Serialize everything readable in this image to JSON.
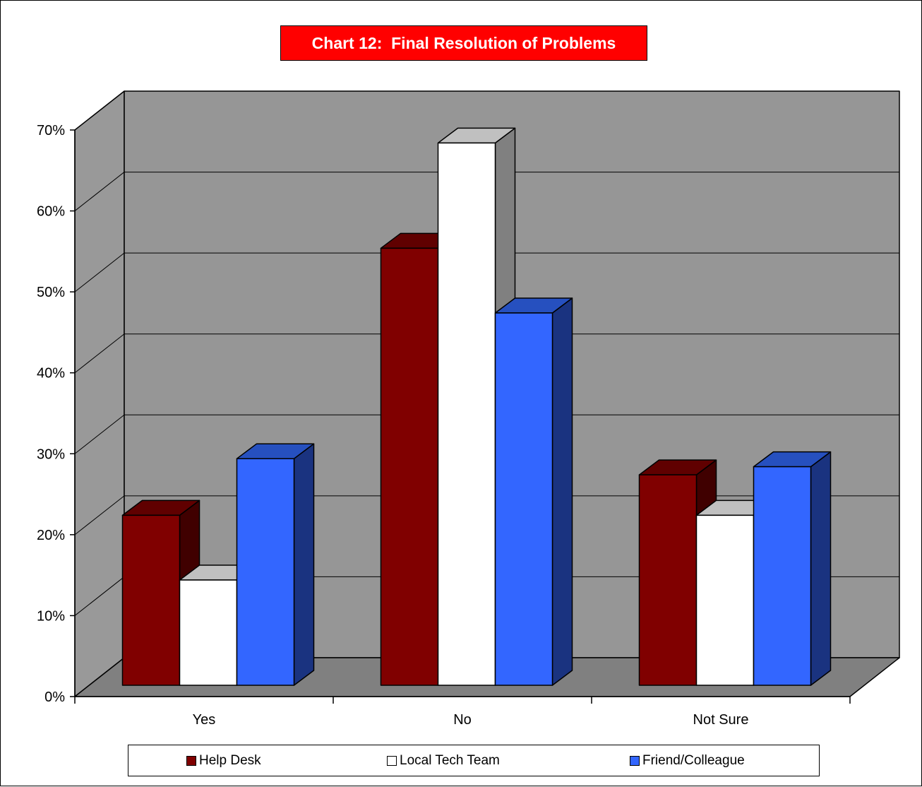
{
  "chart_data": {
    "type": "bar",
    "title": "Chart 12:  Final Resolution of Problems",
    "categories": [
      "Yes",
      "No",
      "Not Sure"
    ],
    "series": [
      {
        "name": "Help Desk",
        "values": [
          21,
          54,
          26
        ]
      },
      {
        "name": "Local Tech Team",
        "values": [
          13,
          67,
          21
        ]
      },
      {
        "name": "Friend/Colleague",
        "values": [
          28,
          46,
          27
        ]
      }
    ],
    "ylim": [
      0,
      70
    ],
    "yticks": [
      "0%",
      "10%",
      "20%",
      "30%",
      "40%",
      "50%",
      "60%",
      "70%"
    ],
    "xlabel": "",
    "ylabel": "",
    "grid": true,
    "legend_position": "bottom",
    "three_d": true,
    "colors": {
      "series": [
        "#800000",
        "#ffffff",
        "#3366ff"
      ],
      "series_side": [
        "#400000",
        "#808080",
        "#1a3380"
      ],
      "series_top": [
        "#600000",
        "#c0c0c0",
        "#2650bf"
      ],
      "back_wall": "#969696",
      "side_wall": "#999999",
      "floor": "#808080",
      "title_background": "#ff0000",
      "title_text": "#ffffff"
    }
  }
}
